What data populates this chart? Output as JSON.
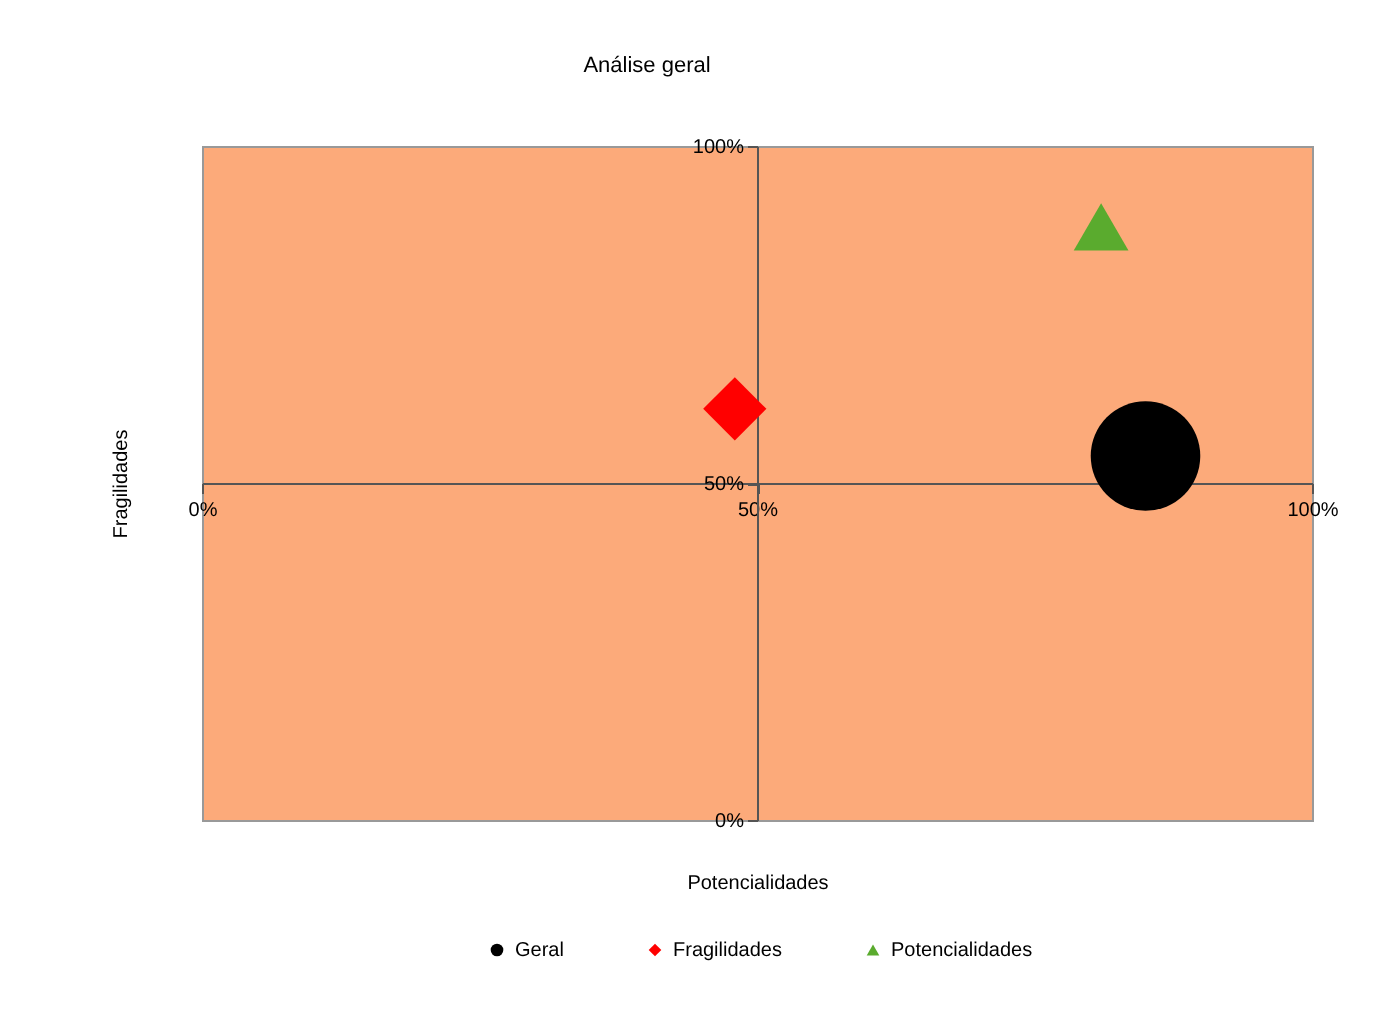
{
  "chart_data": {
    "type": "scatter",
    "title": "Análise geral",
    "xlabel": "Potencialidades",
    "ylabel": "Fragilidades",
    "xlim": [
      0,
      100
    ],
    "ylim": [
      0,
      100
    ],
    "xticks": [
      {
        "value": 0,
        "label": "0%"
      },
      {
        "value": 50,
        "label": "50%"
      },
      {
        "value": 100,
        "label": "100%"
      }
    ],
    "yticks": [
      {
        "value": 0,
        "label": "0%"
      },
      {
        "value": 50,
        "label": "50%"
      },
      {
        "value": 100,
        "label": "100%"
      }
    ],
    "legend": "bottom",
    "grid": false,
    "series": [
      {
        "name": "Geral",
        "color": "#000000",
        "marker": "circle",
        "x": [
          85
        ],
        "values": [
          54
        ]
      },
      {
        "name": "Fragilidades",
        "color": "#ff0000",
        "marker": "diamond",
        "x": [
          48
        ],
        "values": [
          61
        ]
      },
      {
        "name": "Potencialidades",
        "color": "#5aab2e",
        "marker": "triangle",
        "x": [
          81
        ],
        "values": [
          88
        ]
      }
    ]
  }
}
